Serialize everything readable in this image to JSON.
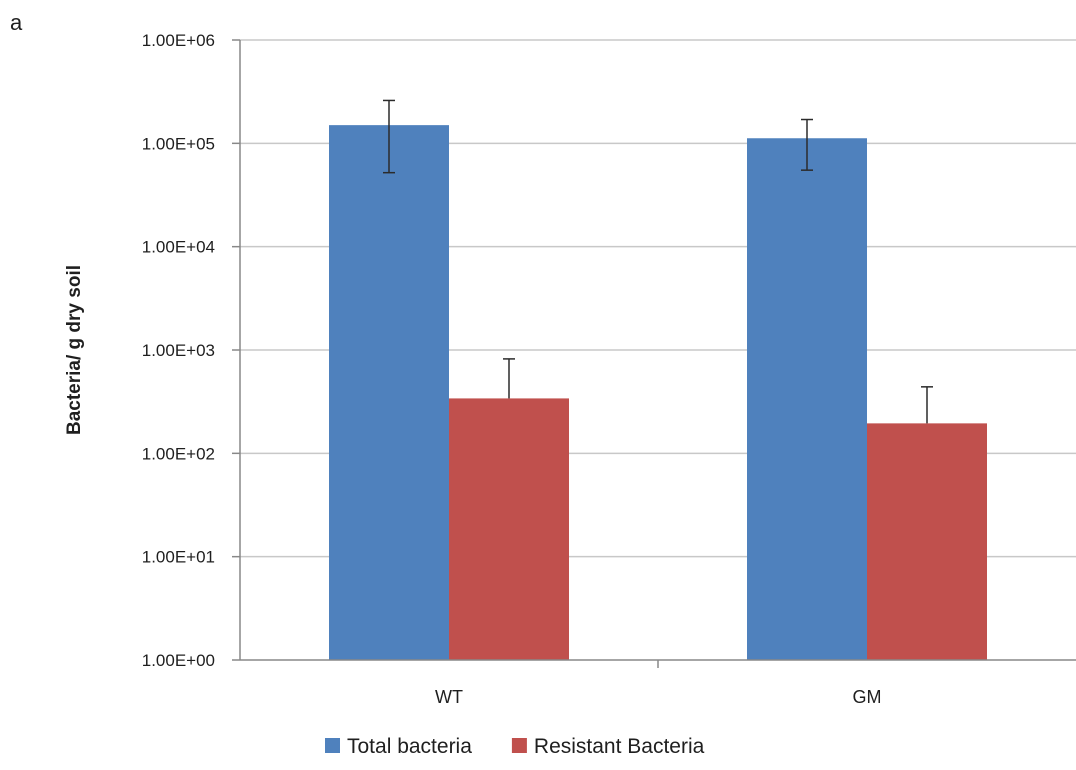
{
  "panel_label": "a",
  "chart_data": {
    "type": "bar",
    "scale": "log",
    "ylim": [
      1,
      1000000
    ],
    "yticks": [
      1,
      10,
      100,
      1000,
      10000,
      100000,
      1000000
    ],
    "ytick_labels": [
      "1.00E+00",
      "1.00E+01",
      "1.00E+02",
      "1.00E+03",
      "1.00E+04",
      "1.00E+05",
      "1.00E+06"
    ],
    "categories": [
      "WT",
      "GM"
    ],
    "series": [
      {
        "name": "Total bacteria",
        "color": "#4f81bd",
        "values": [
          150000,
          112000
        ],
        "error_low": [
          52000,
          55000
        ],
        "error_high": [
          260000,
          170000
        ]
      },
      {
        "name": "Resistant Bacteria",
        "color": "#c0504d",
        "values": [
          340,
          195
        ],
        "error_low": [
          340,
          195
        ],
        "error_high": [
          820,
          440
        ]
      }
    ],
    "xlabel": "",
    "ylabel": "Bacteria/ g dry soil",
    "grid": true,
    "legend_position": "bottom"
  }
}
